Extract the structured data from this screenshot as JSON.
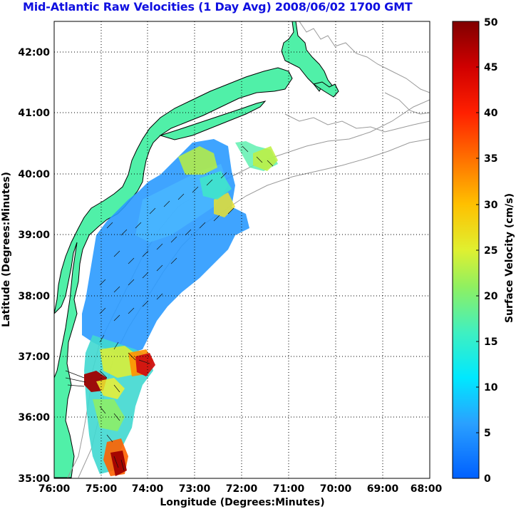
{
  "title": "Mid-Atlantic Raw Velocities (1 Day Avg) 2008/06/02 1700 GMT",
  "map": {
    "xlabel": "Longitude (Degrees:Minutes)",
    "ylabel": "Latitude (Degrees:Minutes)",
    "lon_ticks": [
      "76:00",
      "75:00",
      "74:00",
      "73:00",
      "72:00",
      "71:00",
      "70:00",
      "69:00",
      "68:00"
    ],
    "lat_ticks": [
      "42:00",
      "41:00",
      "40:00",
      "39:00",
      "38:00",
      "37:00",
      "36:00",
      "35:00"
    ],
    "lon_range": [
      -76,
      -68
    ],
    "lat_range": [
      35,
      42.5
    ],
    "land_color": "#50f0a8",
    "grid": "dotted"
  },
  "colorbar": {
    "label": "Surface Velocity (cm/s)",
    "range": [
      0,
      50
    ],
    "ticks": [
      "0",
      "5",
      "10",
      "15",
      "20",
      "25",
      "30",
      "35",
      "40",
      "45",
      "50"
    ],
    "colormap": "jet"
  }
}
